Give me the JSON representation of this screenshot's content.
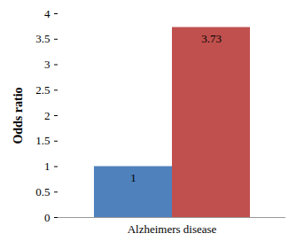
{
  "chart_data": {
    "type": "bar",
    "categories": [
      "Alzheimers disease"
    ],
    "series": [
      {
        "color": "#4f81bd",
        "values": [
          1
        ]
      },
      {
        "color": "#c0504d",
        "values": [
          3.73
        ]
      }
    ],
    "ylabel": "Odds ratio",
    "ylim": [
      0,
      4
    ],
    "yticks": [
      0,
      0.5,
      1,
      1.5,
      2,
      2.5,
      3,
      3.5,
      4
    ],
    "grid": false,
    "data_labels": true
  }
}
